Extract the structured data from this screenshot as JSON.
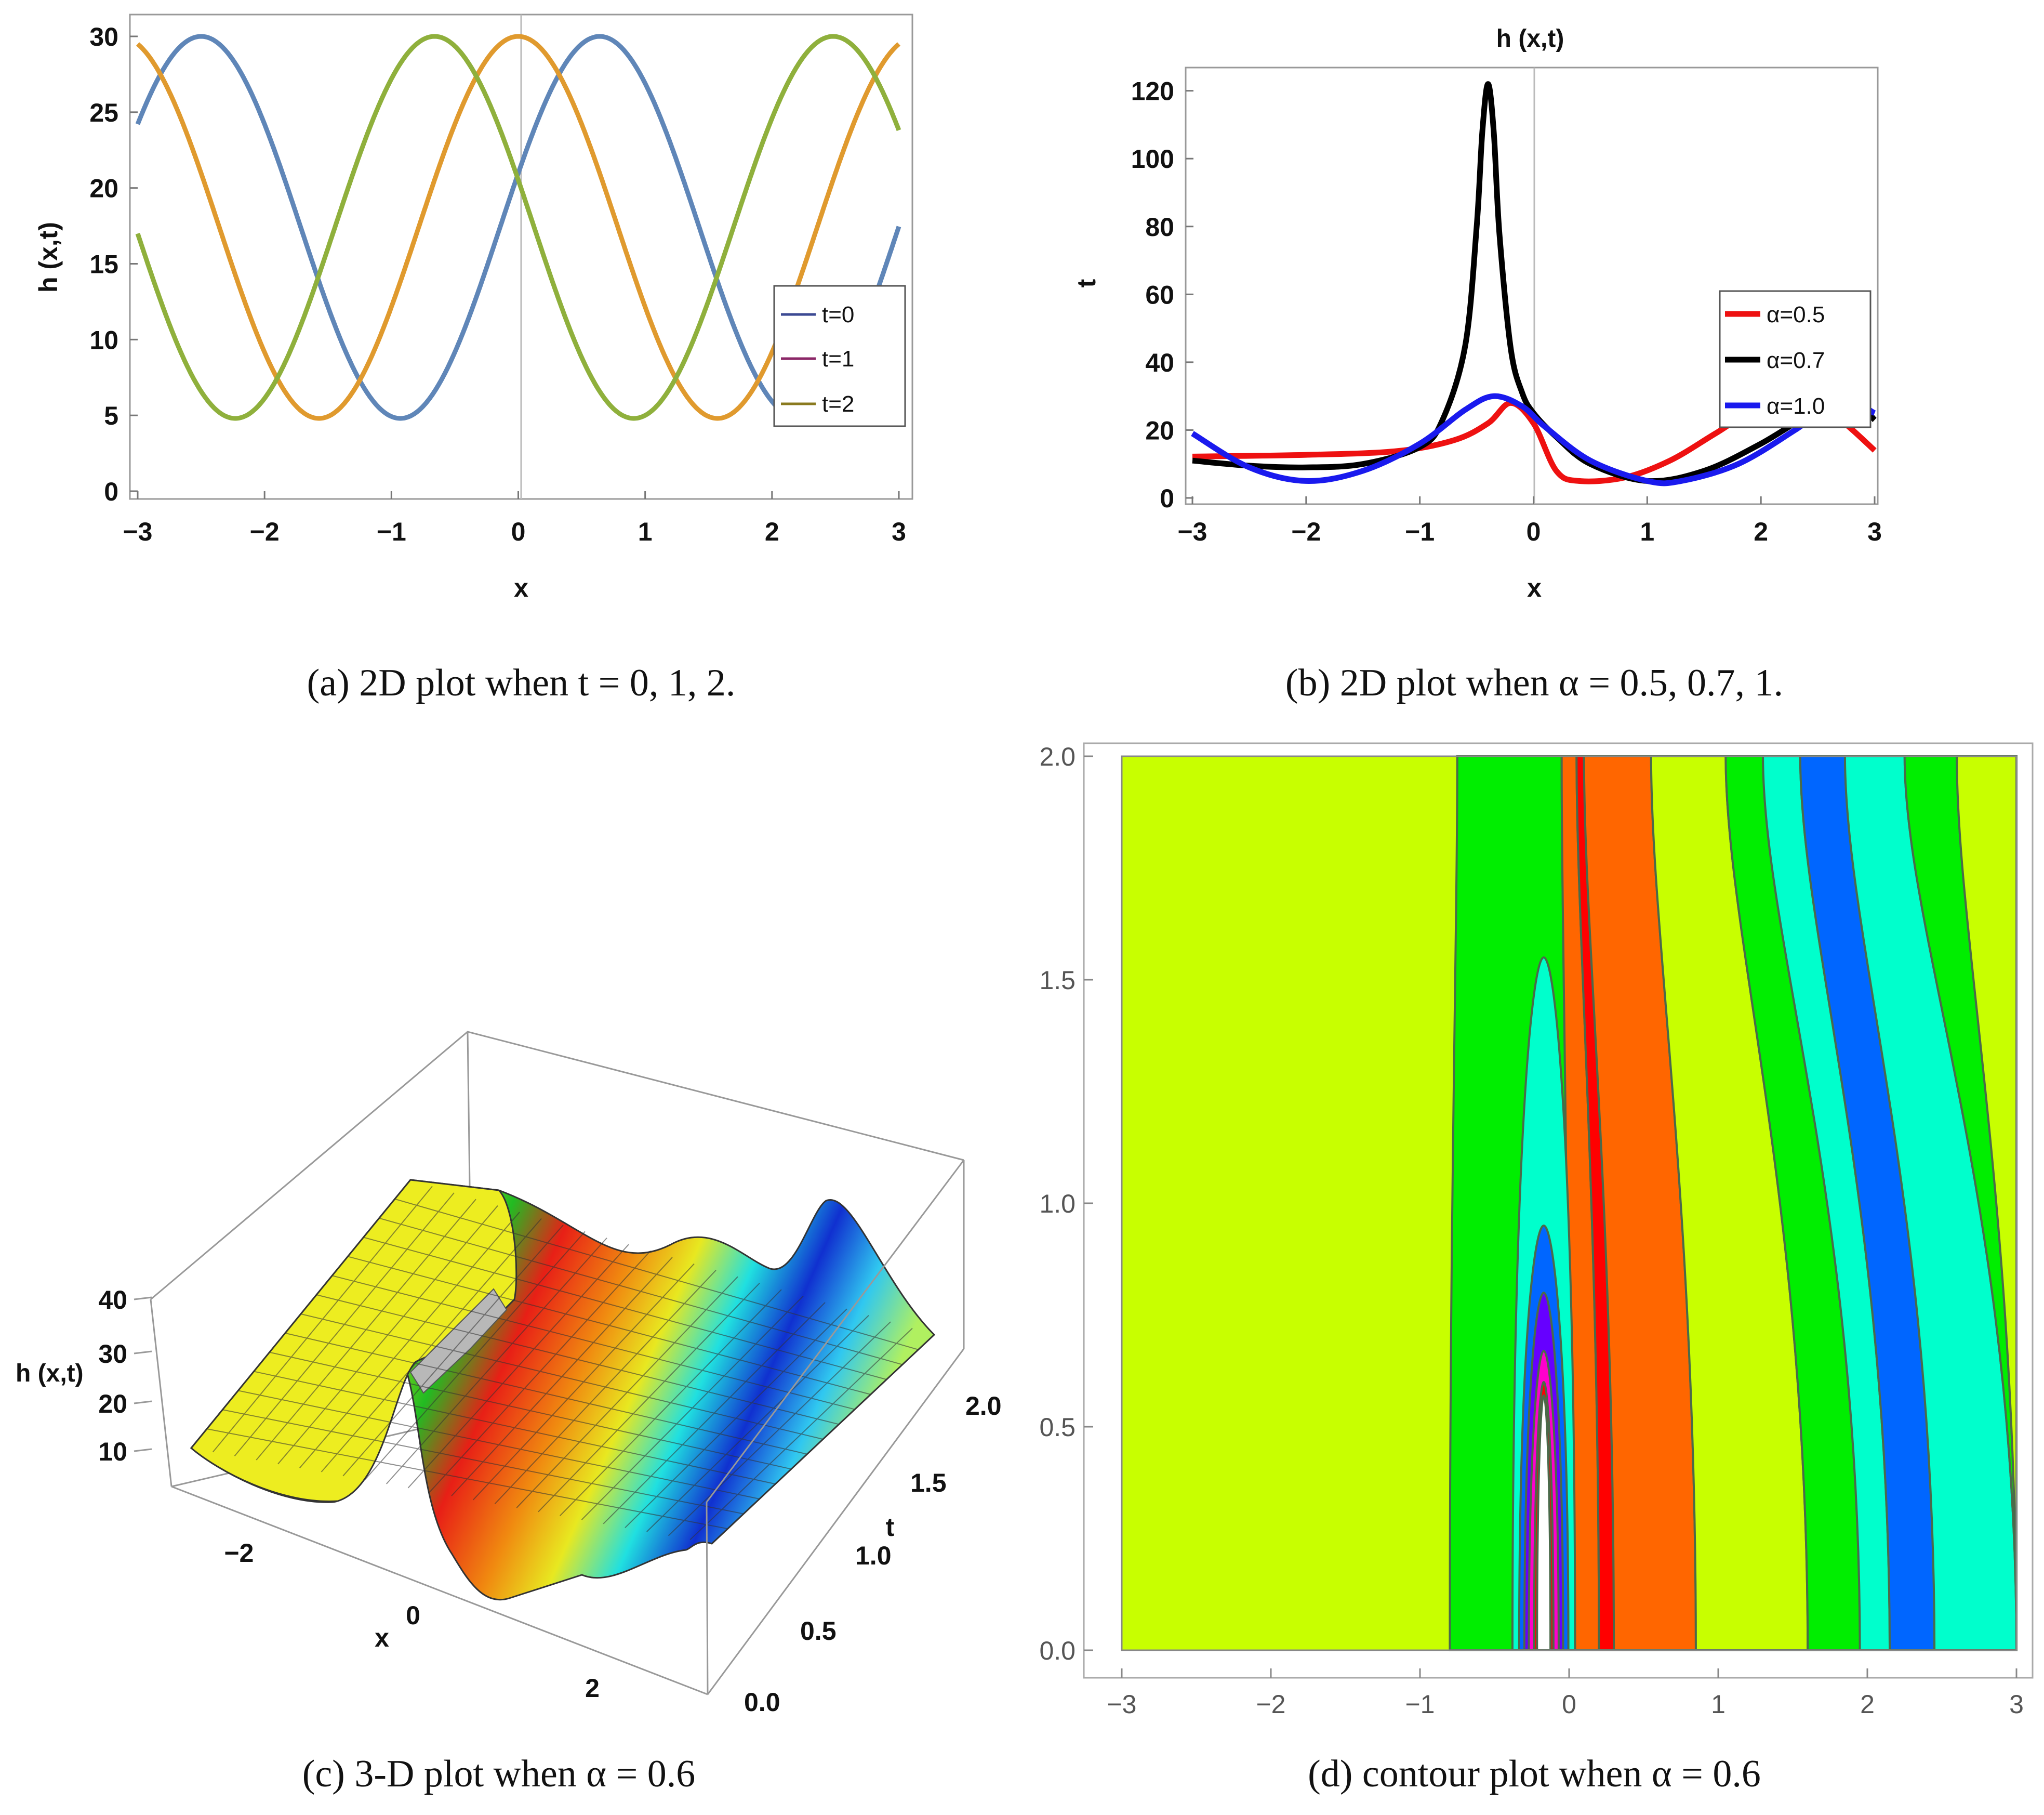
{
  "chart_data": [
    {
      "id": "a",
      "type": "line",
      "caption": "(a) 2D plot when t = 0, 1, 2.",
      "title": "",
      "xlabel": "x",
      "ylabel": "h (x,t)",
      "xlim": [
        -3,
        3
      ],
      "ylim": [
        0,
        30
      ],
      "xticks": [
        "−3",
        "−2",
        "−1",
        "0",
        "1",
        "2",
        "3"
      ],
      "yticks": [
        "0",
        "5",
        "10",
        "15",
        "20",
        "25",
        "30"
      ],
      "legend": {
        "position": "right-middle",
        "entries": [
          "t=0",
          "t=1",
          "t=2"
        ],
        "swatch_colors": [
          "#3c4a93",
          "#8b2767",
          "#8a7a1f"
        ]
      },
      "series": [
        {
          "name": "t=0",
          "color": "#5f86b8",
          "min": 4.8,
          "max": 30,
          "peaks_x": [
            -2.5,
            0.65
          ],
          "troughs_x": [
            -0.92,
            2.22
          ]
        },
        {
          "name": "t=1",
          "color": "#e09a2e",
          "min": 4.8,
          "max": 30,
          "peaks_x": [
            0.0
          ],
          "troughs_x": [
            -1.6,
            1.56
          ]
        },
        {
          "name": "t=2",
          "color": "#8fb03c",
          "min": 4.8,
          "max": 30,
          "peaks_x": [
            -0.66,
            2.48
          ],
          "troughs_x": [
            -2.24,
            0.9
          ]
        }
      ]
    },
    {
      "id": "b",
      "type": "line",
      "caption": "(b) 2D plot when α = 0.5, 0.7, 1.",
      "title": "h (x,t)",
      "xlabel": "x",
      "ylabel": "t",
      "xlim": [
        -3,
        3
      ],
      "ylim": [
        0,
        125
      ],
      "xticks": [
        "−3",
        "−2",
        "−1",
        "0",
        "1",
        "2",
        "3"
      ],
      "yticks": [
        "0",
        "20",
        "40",
        "60",
        "80",
        "100",
        "120"
      ],
      "legend": {
        "position": "right-middle",
        "entries": [
          "α=0.5",
          "α=0.7",
          "α=1.0"
        ]
      },
      "series": [
        {
          "name": "α=0.5",
          "color": "#ee1111",
          "x": [
            -3,
            -2,
            -1.2,
            -0.7,
            -0.4,
            -0.2,
            0,
            0.2,
            0.4,
            0.8,
            1.2,
            1.6,
            2.0,
            2.4,
            2.7,
            3.0
          ],
          "y": [
            12.2,
            12.7,
            13.8,
            17,
            22,
            28,
            22,
            8,
            5,
            6,
            11,
            19,
            27,
            29,
            23,
            14
          ]
        },
        {
          "name": "α=0.7",
          "color": "#000000",
          "x": [
            -3,
            -2.5,
            -2,
            -1.5,
            -1,
            -0.8,
            -0.6,
            -0.5,
            -0.45,
            -0.4,
            -0.35,
            -0.3,
            -0.2,
            -0.1,
            0,
            0.2,
            0.5,
            1.0,
            1.5,
            2.0,
            2.5,
            2.8,
            3.0
          ],
          "y": [
            11,
            9.5,
            9,
            10,
            15,
            23,
            45,
            80,
            108,
            122,
            108,
            78,
            44,
            31,
            25,
            18,
            10,
            5,
            8,
            16,
            26,
            29,
            23
          ]
        },
        {
          "name": "α=1.0",
          "color": "#1a1aee",
          "x": [
            -3,
            -2.5,
            -2,
            -1.5,
            -1,
            -0.6,
            -0.35,
            -0.1,
            0.1,
            0.5,
            1.0,
            1.3,
            1.8,
            2.3,
            2.7,
            3.0
          ],
          "y": [
            19,
            9,
            5,
            8,
            16,
            26,
            30,
            27,
            21,
            11,
            5,
            5,
            10,
            20,
            29,
            25
          ]
        }
      ]
    },
    {
      "id": "c",
      "type": "surface3d",
      "caption": "(c) 3-D plot when α = 0.6",
      "zlabel": "h (x,t)",
      "xlabel": "x",
      "ylabel": "t",
      "zticks": [
        "10",
        "20",
        "30",
        "40"
      ],
      "xticks": [
        "−2",
        "0",
        "2"
      ],
      "yticks": [
        "0.0",
        "0.5",
        "1.0",
        "1.5",
        "2.0"
      ],
      "zlim": [
        5,
        40
      ]
    },
    {
      "id": "d",
      "type": "contour",
      "caption": "(d) contour plot when α = 0.6",
      "xlim": [
        -3,
        3
      ],
      "ylim": [
        0,
        2
      ],
      "xticks": [
        "−3",
        "−2",
        "−1",
        "0",
        "1",
        "2",
        "3"
      ],
      "yticks": [
        "0.0",
        "0.5",
        "1.0",
        "1.5",
        "2.0"
      ],
      "band_colors": [
        "#c8ff00",
        "#00ee00",
        "#00ffcc",
        "#0066ff",
        "#6600ff",
        "#ff00cc",
        "#ff0000",
        "#ff6600",
        "#c8ff00",
        "#00ee00",
        "#00ffcc",
        "#0066ff"
      ]
    }
  ]
}
